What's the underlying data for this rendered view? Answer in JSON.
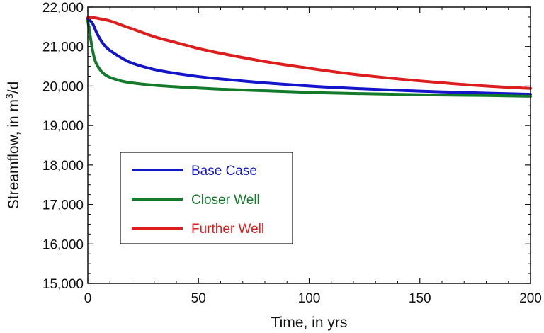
{
  "chart_data": {
    "type": "line",
    "title": "",
    "xlabel": "Time, in yrs",
    "ylabel_prefix": "Streamflow, in m",
    "ylabel_superscript": "3",
    "ylabel_suffix": "/d",
    "xlim": [
      0,
      200
    ],
    "ylim": [
      15000,
      22000
    ],
    "grid": false,
    "legend_position": "center-left",
    "x_ticks": [
      0,
      50,
      100,
      150,
      200
    ],
    "x_tick_labels": [
      "0",
      "50",
      "100",
      "150",
      "200"
    ],
    "y_ticks": [
      15000,
      16000,
      17000,
      18000,
      19000,
      20000,
      21000,
      22000
    ],
    "y_tick_labels": [
      "15,000",
      "16,000",
      "17,000",
      "18,000",
      "19,000",
      "20,000",
      "21,000",
      "22,000"
    ],
    "series": [
      {
        "name": "Base Case",
        "color": "#1414c8",
        "x": [
          0,
          2,
          4,
          6,
          8,
          10,
          15,
          20,
          30,
          40,
          50,
          60,
          80,
          100,
          120,
          150,
          180,
          200
        ],
        "y": [
          21700,
          21600,
          21350,
          21150,
          21000,
          20900,
          20720,
          20580,
          20420,
          20320,
          20240,
          20180,
          20080,
          20000,
          19940,
          19870,
          19820,
          19790
        ]
      },
      {
        "name": "Closer Well",
        "color": "#127a2a",
        "x": [
          0,
          1,
          2,
          3,
          4,
          6,
          8,
          10,
          15,
          20,
          30,
          40,
          50,
          60,
          80,
          100,
          120,
          150,
          180,
          200
        ],
        "y": [
          21650,
          21300,
          20950,
          20700,
          20550,
          20380,
          20280,
          20220,
          20130,
          20080,
          20020,
          19980,
          19950,
          19920,
          19880,
          19840,
          19810,
          19780,
          19760,
          19740
        ]
      },
      {
        "name": "Further Well",
        "color": "#dc1e1e",
        "x": [
          0,
          3,
          5,
          10,
          15,
          20,
          30,
          40,
          50,
          60,
          80,
          100,
          120,
          150,
          180,
          200
        ],
        "y": [
          21730,
          21730,
          21710,
          21650,
          21550,
          21450,
          21250,
          21100,
          20950,
          20830,
          20620,
          20450,
          20300,
          20130,
          20000,
          19940
        ]
      }
    ]
  }
}
